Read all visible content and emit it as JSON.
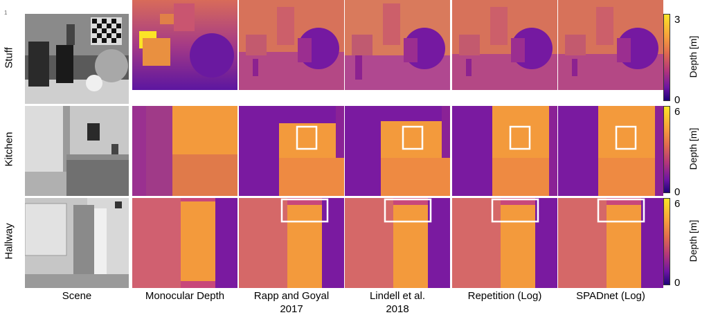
{
  "page_number": "1",
  "rows": [
    {
      "label": "Stuff",
      "colorbar": {
        "max": "3",
        "min": "0",
        "label": "Depth [m]"
      }
    },
    {
      "label": "Kitchen",
      "colorbar": {
        "max": "6",
        "min": "0",
        "label": "Depth [m]"
      }
    },
    {
      "label": "Hallway",
      "colorbar": {
        "max": "6",
        "min": "0",
        "label": "Depth [m]"
      }
    }
  ],
  "columns": [
    {
      "line1": "Scene",
      "line2": ""
    },
    {
      "line1": "Monocular Depth",
      "line2": ""
    },
    {
      "line1": "Rapp and Goyal",
      "line2": "2017"
    },
    {
      "line1": "Lindell et al.",
      "line2": "2018"
    },
    {
      "line1": "Repetition (Log)",
      "line2": ""
    },
    {
      "line1": "SPADnet (Log)",
      "line2": ""
    }
  ],
  "colors": {
    "yellow": "#fbe426",
    "orange": "#f39a3c",
    "light_orange": "#f5a640",
    "magenta": "#c8467a",
    "purple": "#7a1aa0",
    "dark_purple": "#3a0a8a",
    "box": "#ffffff"
  }
}
